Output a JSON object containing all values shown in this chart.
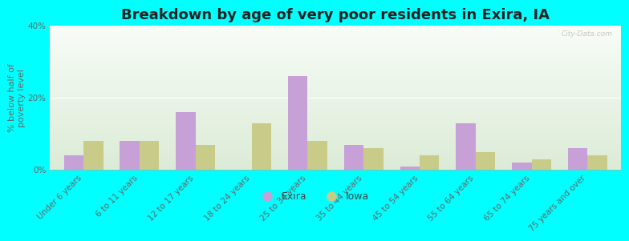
{
  "title": "Breakdown by age of very poor residents in Exira, IA",
  "ylabel": "% below half of\npoverty level",
  "background_color": "#00FFFF",
  "categories": [
    "Under 6 years",
    "6 to 11 years",
    "12 to 17 years",
    "18 to 24 years",
    "25 to 34 years",
    "35 to 44 years",
    "45 to 54 years",
    "55 to 64 years",
    "65 to 74 years",
    "75 years and over"
  ],
  "exira_values": [
    4,
    8,
    16,
    0,
    26,
    7,
    1,
    13,
    2,
    6
  ],
  "iowa_values": [
    8,
    8,
    7,
    13,
    8,
    6,
    4,
    5,
    3,
    4
  ],
  "exira_color": "#c8a0d8",
  "iowa_color": "#c8cc88",
  "ylim": [
    0,
    40
  ],
  "yticks": [
    0,
    20,
    40
  ],
  "ytick_labels": [
    "0%",
    "20%",
    "40%"
  ],
  "bar_width": 0.35,
  "watermark": "City-Data.com",
  "title_fontsize": 13,
  "axis_label_fontsize": 8,
  "tick_fontsize": 7.5
}
